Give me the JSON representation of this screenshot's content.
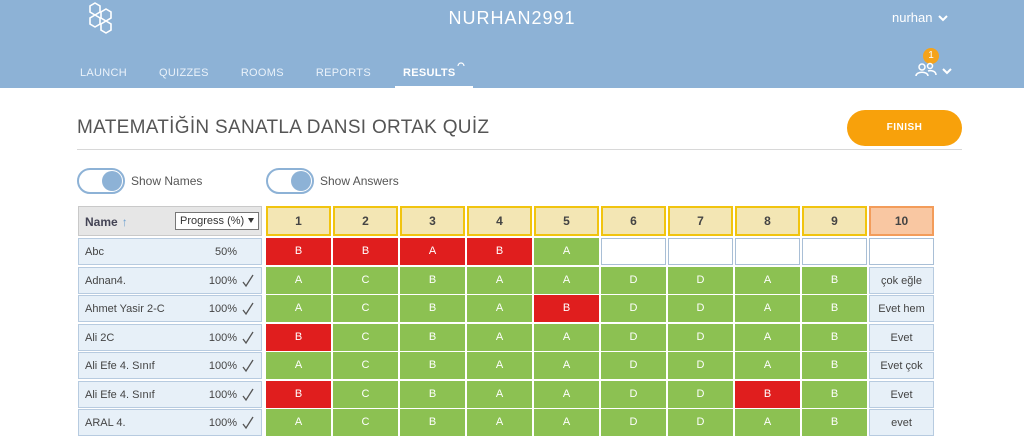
{
  "header": {
    "app_title": "NURHAN2991",
    "user_name": "nurhan",
    "notification_count": "1",
    "nav": [
      {
        "label": "LAUNCH"
      },
      {
        "label": "QUIZZES"
      },
      {
        "label": "ROOMS"
      },
      {
        "label": "REPORTS"
      },
      {
        "label": "RESULTS",
        "active": true
      }
    ]
  },
  "quiz": {
    "title": "MATEMATİĞİN SANATLA DANSI ORTAK QUİZ",
    "finish_label": "FINISH"
  },
  "toggles": {
    "show_names": "Show Names",
    "show_answers": "Show Answers"
  },
  "table": {
    "name_header": "Name",
    "sort_arrow": "↑",
    "progress_select": "Progress (%)",
    "questions": [
      "1",
      "2",
      "3",
      "4",
      "5",
      "6",
      "7",
      "8",
      "9",
      "10"
    ],
    "rows": [
      {
        "name": "Abc",
        "progress": "50%",
        "complete": false,
        "answers": [
          {
            "v": "B",
            "s": "wrong"
          },
          {
            "v": "B",
            "s": "wrong"
          },
          {
            "v": "A",
            "s": "wrong"
          },
          {
            "v": "B",
            "s": "wrong"
          },
          {
            "v": "A",
            "s": "correct"
          },
          {
            "v": "",
            "s": "empty"
          },
          {
            "v": "",
            "s": "empty"
          },
          {
            "v": "",
            "s": "empty"
          },
          {
            "v": "",
            "s": "empty"
          },
          {
            "v": "",
            "s": "empty"
          }
        ]
      },
      {
        "name": "Adnan4.",
        "progress": "100%",
        "complete": true,
        "answers": [
          {
            "v": "A",
            "s": "correct"
          },
          {
            "v": "C",
            "s": "correct"
          },
          {
            "v": "B",
            "s": "correct"
          },
          {
            "v": "A",
            "s": "correct"
          },
          {
            "v": "A",
            "s": "correct"
          },
          {
            "v": "D",
            "s": "correct"
          },
          {
            "v": "D",
            "s": "correct"
          },
          {
            "v": "A",
            "s": "correct"
          },
          {
            "v": "B",
            "s": "correct"
          },
          {
            "v": "çok eğle",
            "s": "open"
          }
        ]
      },
      {
        "name": "Ahmet Yasir 2-C",
        "progress": "100%",
        "complete": true,
        "answers": [
          {
            "v": "A",
            "s": "correct"
          },
          {
            "v": "C",
            "s": "correct"
          },
          {
            "v": "B",
            "s": "correct"
          },
          {
            "v": "A",
            "s": "correct"
          },
          {
            "v": "B",
            "s": "wrong"
          },
          {
            "v": "D",
            "s": "correct"
          },
          {
            "v": "D",
            "s": "correct"
          },
          {
            "v": "A",
            "s": "correct"
          },
          {
            "v": "B",
            "s": "correct"
          },
          {
            "v": "Evet hem",
            "s": "open"
          }
        ]
      },
      {
        "name": "Ali 2C",
        "progress": "100%",
        "complete": true,
        "answers": [
          {
            "v": "B",
            "s": "wrong"
          },
          {
            "v": "C",
            "s": "correct"
          },
          {
            "v": "B",
            "s": "correct"
          },
          {
            "v": "A",
            "s": "correct"
          },
          {
            "v": "A",
            "s": "correct"
          },
          {
            "v": "D",
            "s": "correct"
          },
          {
            "v": "D",
            "s": "correct"
          },
          {
            "v": "A",
            "s": "correct"
          },
          {
            "v": "B",
            "s": "correct"
          },
          {
            "v": "Evet",
            "s": "open"
          }
        ]
      },
      {
        "name": "Ali Efe 4. Sınıf",
        "progress": "100%",
        "complete": true,
        "answers": [
          {
            "v": "A",
            "s": "correct"
          },
          {
            "v": "C",
            "s": "correct"
          },
          {
            "v": "B",
            "s": "correct"
          },
          {
            "v": "A",
            "s": "correct"
          },
          {
            "v": "A",
            "s": "correct"
          },
          {
            "v": "D",
            "s": "correct"
          },
          {
            "v": "D",
            "s": "correct"
          },
          {
            "v": "A",
            "s": "correct"
          },
          {
            "v": "B",
            "s": "correct"
          },
          {
            "v": "Evet çok",
            "s": "open"
          }
        ]
      },
      {
        "name": "Ali Efe 4. Sınıf",
        "progress": "100%",
        "complete": true,
        "answers": [
          {
            "v": "B",
            "s": "wrong"
          },
          {
            "v": "C",
            "s": "correct"
          },
          {
            "v": "B",
            "s": "correct"
          },
          {
            "v": "A",
            "s": "correct"
          },
          {
            "v": "A",
            "s": "correct"
          },
          {
            "v": "D",
            "s": "correct"
          },
          {
            "v": "D",
            "s": "correct"
          },
          {
            "v": "B",
            "s": "wrong"
          },
          {
            "v": "B",
            "s": "correct"
          },
          {
            "v": "Evet",
            "s": "open"
          }
        ]
      },
      {
        "name": "ARAL 4.",
        "progress": "100%",
        "complete": true,
        "answers": [
          {
            "v": "A",
            "s": "correct"
          },
          {
            "v": "C",
            "s": "correct"
          },
          {
            "v": "B",
            "s": "correct"
          },
          {
            "v": "A",
            "s": "correct"
          },
          {
            "v": "A",
            "s": "correct"
          },
          {
            "v": "D",
            "s": "correct"
          },
          {
            "v": "D",
            "s": "correct"
          },
          {
            "v": "A",
            "s": "correct"
          },
          {
            "v": "B",
            "s": "correct"
          },
          {
            "v": "evet",
            "s": "open"
          }
        ]
      }
    ]
  },
  "colors": {
    "header_bg": "#8db2d6",
    "accent_orange": "#f8a10b",
    "correct": "#8cc152",
    "wrong": "#e01e1e",
    "question_header": "#f3e6b4",
    "open_question_header": "#f9c7a2"
  }
}
